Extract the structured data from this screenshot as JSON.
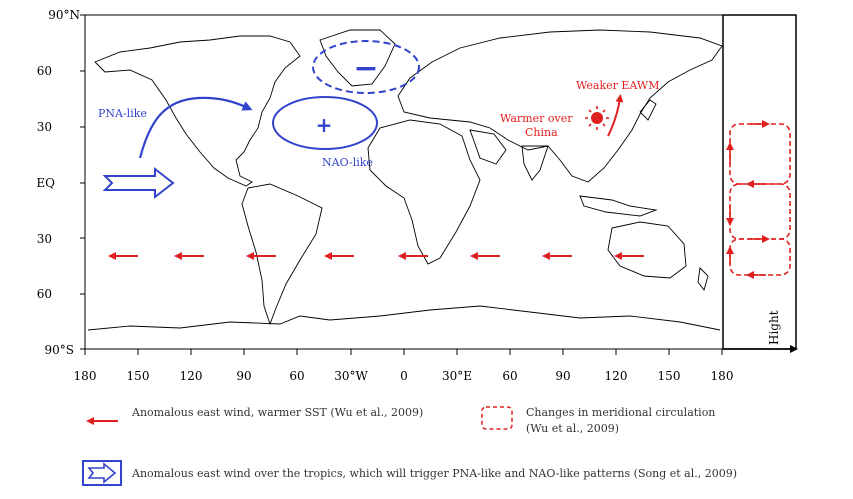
{
  "map": {
    "lat_labels": [
      "90°N",
      "60",
      "30",
      "EQ",
      "30",
      "60",
      "90°S"
    ],
    "lon_labels": [
      "180",
      "150",
      "120",
      "90",
      "60",
      "30°W",
      "0",
      "30°E",
      "60",
      "90",
      "120",
      "150",
      "180"
    ],
    "height_label": "Hight"
  },
  "annotations": {
    "pna_like": "PNA-like",
    "nao_like": "NAO-like",
    "weaker_eawm": "Weaker EAWM",
    "warmer_line1": "Warmer over",
    "warmer_line2": "China",
    "minus_sign": "−",
    "plus_sign": "+"
  },
  "legend": {
    "red_arrow_text": "Anomalous east wind, warmer SST (Wu et al., 2009)",
    "circulation_line1": "Changes in meridional circulation",
    "circulation_line2": "(Wu et al., 2009)",
    "blue_arrow_text": "Anomalous east wind over the tropics, which will trigger PNA-like and NAO-like patterns (Song et al., 2009)"
  },
  "colors": {
    "blue": "#3344cc",
    "red": "#e02020",
    "land": "#000000"
  }
}
